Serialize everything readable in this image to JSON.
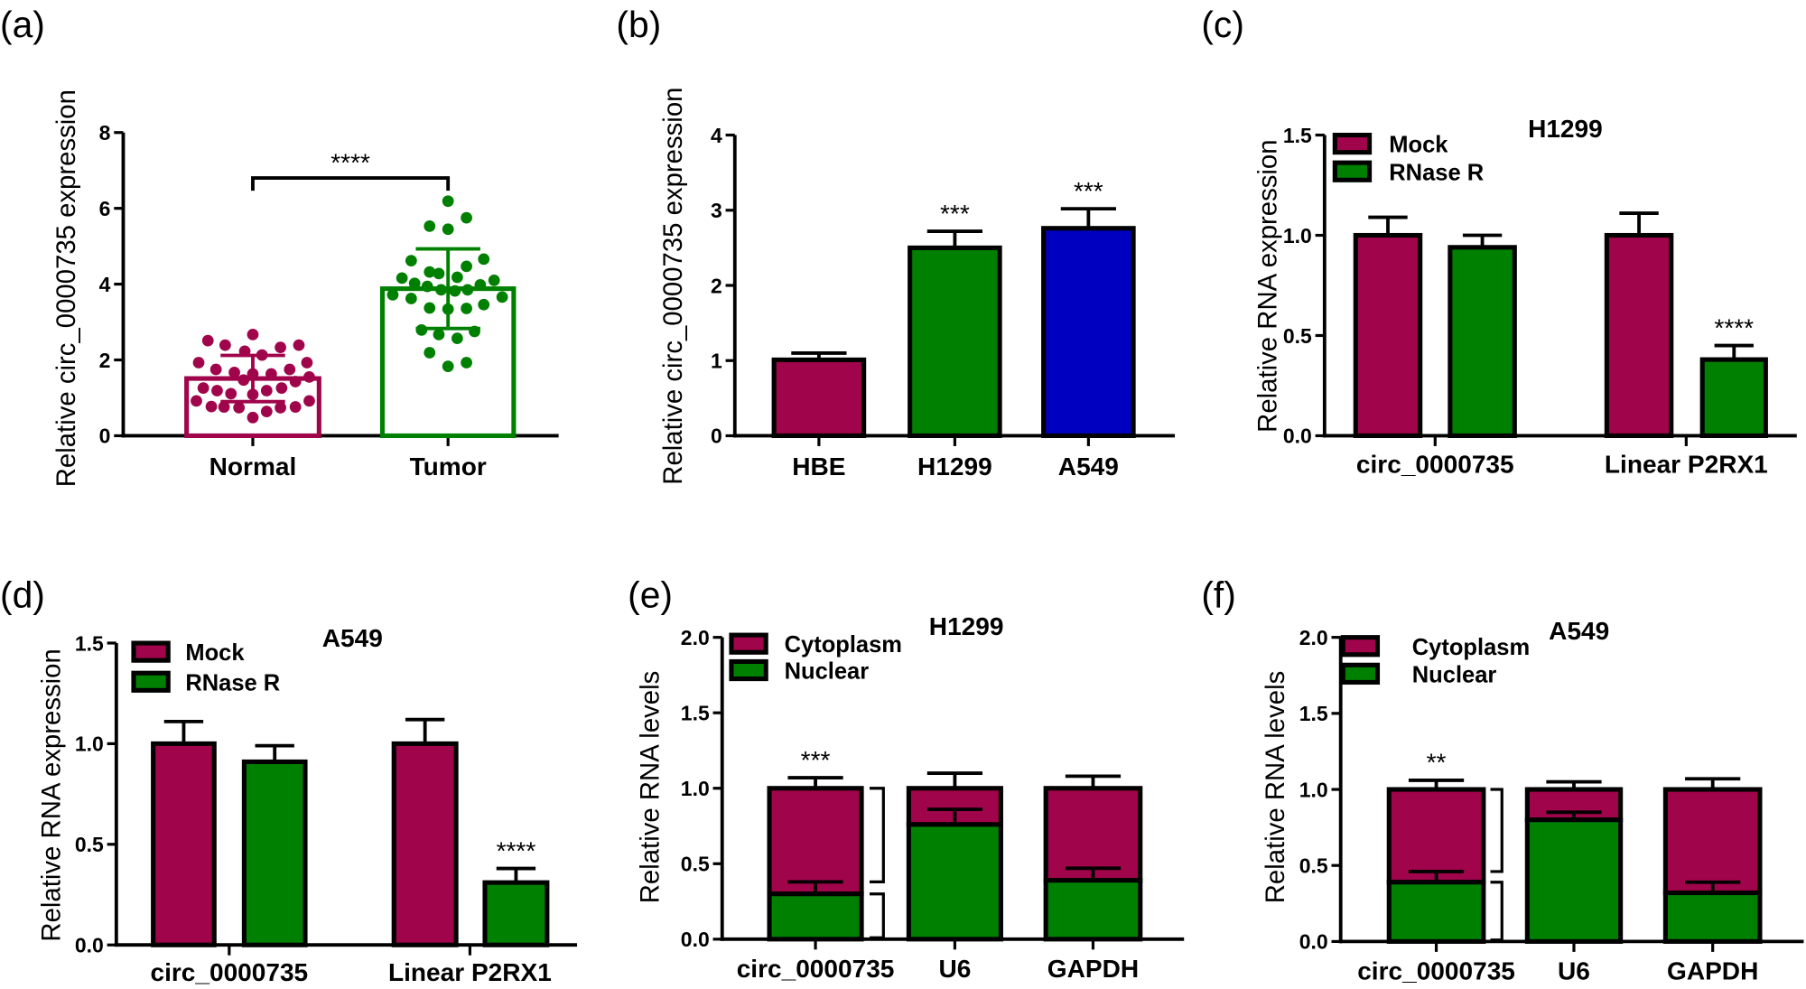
{
  "colors": {
    "maroon": "#a0044a",
    "green": "#008000",
    "blue": "#0000c0",
    "stroke": "#000000"
  },
  "chart_data": [
    {
      "panel": "(a)",
      "type": "bar",
      "variant": "bar with individual points, mean ± SD",
      "ylabel": "Relative circ_0000735 expression",
      "ylim": [
        0,
        8
      ],
      "yticks": [
        0,
        2,
        4,
        6,
        8
      ],
      "ytick_labels": [
        "0",
        "2",
        "4",
        "6",
        "8"
      ],
      "categories": [
        "Normal",
        "Tumor"
      ],
      "colors": [
        "#a0044a",
        "#008000"
      ],
      "values": [
        1.51,
        3.88
      ],
      "error": [
        0.61,
        1.05
      ],
      "points": [
        [
          2.51,
          2.39,
          2.67,
          2.23,
          2.13,
          2.33,
          2.39,
          1.93,
          1.75,
          1.67,
          1.63,
          1.63,
          1.75,
          1.93,
          1.55,
          1.43,
          1.47,
          1.26,
          1.19,
          1.11,
          1.09,
          1.19,
          1.26,
          0.92,
          0.77,
          0.76,
          0.74,
          0.64,
          0.74,
          0.76,
          0.92,
          0.48
        ],
        [
          6.19,
          5.53,
          5.45,
          5.75,
          4.62,
          4.66,
          4.47,
          4.32,
          4.28,
          4.16,
          4.18,
          4.1,
          4.02,
          3.94,
          3.85,
          3.82,
          3.85,
          3.98,
          3.72,
          3.62,
          3.66,
          3.37,
          3.34,
          3.36,
          3.46,
          2.79,
          2.67,
          2.57,
          2.75,
          2.19,
          1.83,
          1.93
        ]
      ],
      "annotations": [
        {
          "text": "****",
          "between": [
            "Normal",
            "Tumor"
          ]
        }
      ]
    },
    {
      "panel": "(b)",
      "type": "bar",
      "ylabel": "Relative circ_0000735 expression",
      "ylim": [
        0,
        4
      ],
      "yticks": [
        0,
        1,
        2,
        3,
        4
      ],
      "ytick_labels": [
        "0",
        "1",
        "2",
        "3",
        "4"
      ],
      "categories": [
        "HBE",
        "H1299",
        "A549"
      ],
      "colors": [
        "#a0044a",
        "#008000",
        "#0000c0"
      ],
      "values": [
        1.01,
        2.5,
        2.76
      ],
      "error": [
        0.09,
        0.22,
        0.26
      ],
      "annotations": [
        "",
        "***",
        "***"
      ]
    },
    {
      "panel": "(c)",
      "type": "bar",
      "title": "H1299",
      "ylabel": "Relative RNA expression",
      "ylim": [
        0,
        1.5
      ],
      "yticks": [
        0,
        0.5,
        1.0,
        1.5
      ],
      "ytick_labels": [
        "0.0",
        "0.5",
        "1.0",
        "1.5"
      ],
      "categories": [
        "circ_0000735",
        "Linear P2RX1"
      ],
      "legend": "top-left",
      "series": [
        {
          "name": "Mock",
          "color": "#a0044a",
          "values": [
            1.0,
            1.0
          ],
          "error": [
            0.09,
            0.11
          ],
          "annotations": [
            "",
            ""
          ]
        },
        {
          "name": "RNase R",
          "color": "#008000",
          "values": [
            0.94,
            0.38
          ],
          "error": [
            0.06,
            0.07
          ],
          "annotations": [
            "",
            "****"
          ]
        }
      ]
    },
    {
      "panel": "(d)",
      "type": "bar",
      "title": "A549",
      "ylabel": "Relative RNA expression",
      "ylim": [
        0,
        1.5
      ],
      "yticks": [
        0,
        0.5,
        1.0,
        1.5
      ],
      "ytick_labels": [
        "0.0",
        "0.5",
        "1.0",
        "1.5"
      ],
      "categories": [
        "circ_0000735",
        "Linear P2RX1"
      ],
      "legend": "top-left",
      "series": [
        {
          "name": "Mock",
          "color": "#a0044a",
          "values": [
            1.0,
            1.0
          ],
          "error": [
            0.11,
            0.12
          ],
          "annotations": [
            "",
            ""
          ]
        },
        {
          "name": "RNase R",
          "color": "#008000",
          "values": [
            0.91,
            0.31
          ],
          "error": [
            0.08,
            0.07
          ],
          "annotations": [
            "",
            "****"
          ]
        }
      ]
    },
    {
      "panel": "(e)",
      "type": "bar",
      "stacked": true,
      "title": "H1299",
      "ylabel": "Relative RNA levels",
      "ylim": [
        0,
        2.0
      ],
      "yticks": [
        0,
        0.5,
        1.0,
        1.5,
        2.0
      ],
      "ytick_labels": [
        "0.0",
        "0.5",
        "1.0",
        "1.5",
        "2.0"
      ],
      "categories": [
        "circ_0000735",
        "U6",
        "GAPDH"
      ],
      "legend": "top-left",
      "legend_order": [
        "Cytoplasm",
        "Nuclear"
      ],
      "series": [
        {
          "name": "Nuclear",
          "color": "#008000",
          "values": [
            0.3,
            0.76,
            0.39
          ],
          "error": [
            0.08,
            0.1,
            0.08
          ]
        },
        {
          "name": "Cytoplasm",
          "color": "#a0044a",
          "values": [
            0.7,
            0.24,
            0.61
          ],
          "error": [
            0.07,
            0.1,
            0.08
          ]
        }
      ],
      "annotations": [
        "***",
        "",
        ""
      ]
    },
    {
      "panel": "(f)",
      "type": "bar",
      "stacked": true,
      "title": "A549",
      "ylabel": "Relative RNA levels",
      "ylim": [
        0,
        2.0
      ],
      "yticks": [
        0,
        0.5,
        1.0,
        1.5,
        2.0
      ],
      "ytick_labels": [
        "0.0",
        "0.5",
        "1.0",
        "1.5",
        "2.0"
      ],
      "categories": [
        "circ_0000735",
        "U6",
        "GAPDH"
      ],
      "legend": "top-left",
      "legend_order": [
        "Cytoplasm",
        "Nuclear"
      ],
      "series": [
        {
          "name": "Nuclear",
          "color": "#008000",
          "values": [
            0.39,
            0.8,
            0.32
          ],
          "error": [
            0.07,
            0.05,
            0.07
          ]
        },
        {
          "name": "Cytoplasm",
          "color": "#a0044a",
          "values": [
            0.61,
            0.2,
            0.68
          ],
          "error": [
            0.06,
            0.05,
            0.07
          ]
        }
      ],
      "annotations": [
        "**",
        "",
        ""
      ]
    }
  ]
}
